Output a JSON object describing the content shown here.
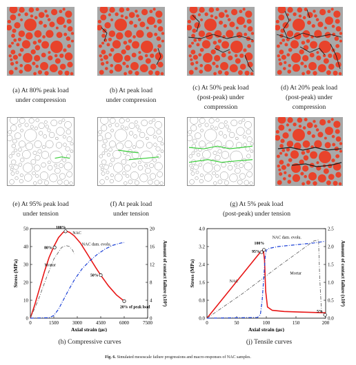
{
  "panels": [
    {
      "id": "a",
      "lines": [
        "(a) At 80% peak load",
        "under compression"
      ]
    },
    {
      "id": "b",
      "lines": [
        "(b) At peak load",
        "under compression"
      ]
    },
    {
      "id": "c",
      "lines": [
        "(c) At 50% peak load",
        "(post-peak) under",
        "compression"
      ]
    },
    {
      "id": "d",
      "lines": [
        "(d) At 20% peak load",
        "(post-peak) under",
        "compression"
      ]
    },
    {
      "id": "e",
      "lines": [
        "(e) At 95% peak load",
        "under tension"
      ]
    },
    {
      "id": "f",
      "lines": [
        "(f) At peak load",
        "under tension"
      ]
    },
    {
      "id": "g",
      "lines": [
        "(g) At 5% peak load",
        "(post-peak) under tension"
      ]
    },
    {
      "id": "h",
      "lines": [
        "(h) Compressive curves"
      ]
    },
    {
      "id": "j",
      "lines": [
        "(j) Tensile curves"
      ]
    }
  ],
  "figure_caption": {
    "label": "Fig. 6.",
    "text": "Simulated mesoscale failure progressions and macro-responses of NAC samples."
  },
  "colors": {
    "aggregate": "#e8432b",
    "mortar": "#a8a8a8",
    "crack": "#1a1a1a",
    "contact_failure": "#33cc33",
    "nac": "#e81515",
    "damage": "#1a3fd6",
    "mortar_curve": "#666666"
  },
  "chart_data": [
    {
      "type": "line",
      "xlabel": "Axial strain (με)",
      "ylabel": "Stress (MPa)",
      "y2label": "Amount of contact failure (x10³)",
      "xlim": [
        0,
        7500
      ],
      "ylim": [
        0,
        50
      ],
      "y2lim": [
        0,
        20
      ],
      "xticks": [
        "0",
        "1500",
        "3000",
        "4500",
        "6000",
        "7500"
      ],
      "yticks": [
        "0",
        "10",
        "20",
        "30",
        "40",
        "50"
      ],
      "y2ticks": [
        "0",
        "4",
        "8",
        "12",
        "16",
        "20"
      ],
      "series": [
        {
          "name": "NAC",
          "axis": "left",
          "x": [
            0,
            300,
            600,
            900,
            1200,
            1500,
            1800,
            2100,
            2300,
            2500,
            2800,
            3200,
            3700,
            4200,
            4500,
            5000,
            5500,
            6000
          ],
          "y": [
            0,
            8,
            17,
            26,
            34,
            40,
            45,
            48,
            48.5,
            48,
            46,
            42,
            35,
            28,
            24,
            18,
            13,
            9.5
          ]
        },
        {
          "name": "Mortar",
          "axis": "left",
          "x": [
            0,
            500,
            1000,
            1500,
            2000,
            2300,
            2500,
            2700,
            2800
          ],
          "y": [
            0,
            10,
            22,
            33,
            39.5,
            40.5,
            40,
            38,
            36
          ]
        },
        {
          "name": "NAC dam. evolu.",
          "axis": "right",
          "x": [
            0,
            1200,
            1500,
            1800,
            2100,
            2400,
            2800,
            3300,
            3800,
            4300,
            4800,
            5300,
            5800,
            6000
          ],
          "y": [
            0,
            0.1,
            0.6,
            2,
            4,
            6,
            8.5,
            11,
            12.8,
            14.3,
            15.5,
            16.3,
            16.8,
            16.9
          ]
        }
      ],
      "markers": [
        {
          "label": "80%",
          "x": 1550,
          "y": 39.5
        },
        {
          "label": "100%",
          "x": 2250,
          "y": 48.5
        },
        {
          "label": "50%",
          "x": 4500,
          "y": 24
        },
        {
          "label": "20% of peak load",
          "x": 6000,
          "y": 9.5
        }
      ]
    },
    {
      "type": "line",
      "xlabel": "Axial strain (με)",
      "ylabel": "Stress (MPa)",
      "y2label": "Amount of contact failure (x10³)",
      "xlim": [
        0,
        200
      ],
      "ylim": [
        0,
        4.0
      ],
      "y2lim": [
        0,
        2.5
      ],
      "xticks": [
        "0",
        "50",
        "100",
        "150",
        "200"
      ],
      "yticks": [
        "0.0",
        "0.8",
        "1.6",
        "2.4",
        "3.2",
        "4.0"
      ],
      "y2ticks": [
        "0.0",
        "0.5",
        "1.0",
        "1.5",
        "2.0",
        "2.5"
      ],
      "series": [
        {
          "name": "NAC",
          "axis": "left",
          "x": [
            0,
            90,
            95,
            97,
            99,
            102,
            110,
            130,
            160,
            190,
            200
          ],
          "y": [
            0,
            2.95,
            3.05,
            2.6,
            1.2,
            0.5,
            0.35,
            0.3,
            0.27,
            0.25,
            0.24
          ]
        },
        {
          "name": "Mortar",
          "axis": "left",
          "x": [
            0,
            60,
            120,
            180,
            188,
            190,
            193,
            200
          ],
          "y": [
            0,
            1.1,
            2.3,
            3.45,
            3.5,
            1.8,
            0.3,
            0.1
          ]
        },
        {
          "name": "NAC dam. evolu.",
          "axis": "right",
          "x": [
            0,
            85,
            90,
            93,
            96,
            98,
            100,
            105,
            120,
            150,
            180,
            200
          ],
          "y": [
            0,
            0.02,
            0.1,
            0.5,
            1.2,
            1.7,
            1.9,
            1.95,
            2.0,
            2.05,
            2.1,
            2.15
          ]
        }
      ],
      "markers": [
        {
          "label": "100%",
          "x": 96,
          "y": 3.05
        },
        {
          "label": "95%",
          "x": 92,
          "y": 2.95
        },
        {
          "label": "5%",
          "x": 199,
          "y": 0.15
        }
      ]
    }
  ]
}
